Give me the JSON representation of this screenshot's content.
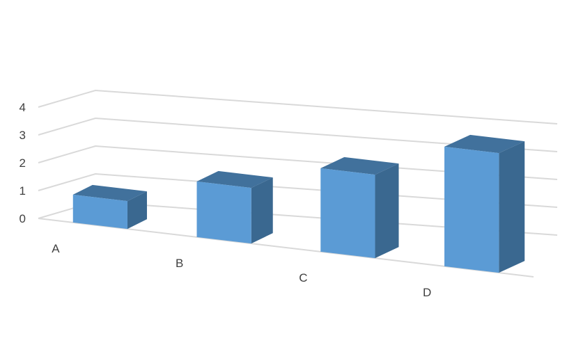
{
  "chart_data": {
    "type": "bar",
    "style": "3d-column",
    "categories": [
      "A",
      "B",
      "C",
      "D"
    ],
    "values": [
      1,
      2,
      3,
      4.3
    ],
    "ylim": [
      0,
      4
    ],
    "yticks": [
      "0",
      "1",
      "2",
      "3",
      "4"
    ],
    "grid": true,
    "legend": false,
    "colors": {
      "front": "#5b9bd5",
      "top": "#41719c",
      "side": "#3a6890",
      "grid": "#d9d9d9",
      "text": "#404040"
    }
  }
}
